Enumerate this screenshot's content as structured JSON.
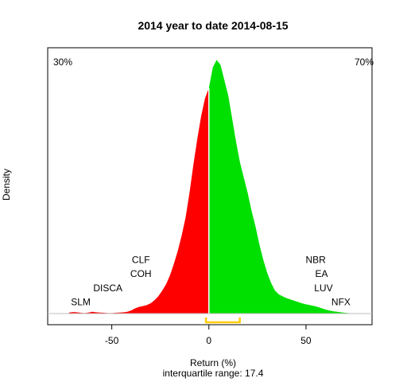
{
  "chart_data": {
    "type": "area",
    "title": "2014  year to date 2014-08-15",
    "xlabel": "Return (%)",
    "ylabel": "Density",
    "subtitle": "interquartile range: 17.4",
    "xlim": [
      -83,
      84
    ],
    "ylim": [
      0,
      1.0
    ],
    "xticks": [
      -50,
      0,
      50
    ],
    "xtick_labels": [
      "-50",
      "0",
      "50"
    ],
    "negative_share": "30%",
    "positive_share": "70%",
    "colors": {
      "negative": "#ff0000",
      "positive": "#00e000",
      "iqr_bracket": "#ffcc00",
      "baseline": "#bebebe"
    },
    "interquartile_range": {
      "low": -1.5,
      "high": 15.9
    },
    "density": {
      "x": [
        -72,
        -70,
        -68,
        -66,
        -64,
        -62,
        -60,
        -58,
        -56,
        -54,
        -52,
        -50,
        -48,
        -46,
        -44,
        -42,
        -40,
        -38,
        -36,
        -34,
        -32,
        -30,
        -28,
        -26,
        -24,
        -22,
        -20,
        -18,
        -16,
        -14,
        -12,
        -10,
        -8,
        -6,
        -4,
        -2,
        0,
        2,
        4,
        6,
        8,
        10,
        12,
        14,
        16,
        18,
        20,
        22,
        24,
        26,
        28,
        30,
        32,
        34,
        36,
        38,
        40,
        42,
        44,
        46,
        48,
        50,
        52,
        54,
        56,
        58,
        60,
        62,
        64,
        66,
        68,
        70,
        72
      ],
      "y": [
        0.004,
        0.006,
        0.005,
        0.003,
        0.002,
        0.004,
        0.007,
        0.005,
        0.004,
        0.003,
        0.002,
        0.002,
        0.003,
        0.004,
        0.005,
        0.007,
        0.012,
        0.02,
        0.026,
        0.029,
        0.033,
        0.04,
        0.052,
        0.068,
        0.09,
        0.115,
        0.15,
        0.195,
        0.245,
        0.305,
        0.375,
        0.47,
        0.58,
        0.68,
        0.77,
        0.84,
        0.88,
        0.96,
        0.99,
        0.97,
        0.91,
        0.85,
        0.76,
        0.67,
        0.59,
        0.53,
        0.47,
        0.4,
        0.34,
        0.27,
        0.21,
        0.16,
        0.12,
        0.09,
        0.075,
        0.067,
        0.06,
        0.055,
        0.05,
        0.045,
        0.04,
        0.036,
        0.033,
        0.03,
        0.026,
        0.021,
        0.016,
        0.012,
        0.009,
        0.007,
        0.005,
        0.003,
        0.002
      ]
    },
    "annotations": [
      {
        "text": "SLM",
        "x": -66,
        "y": 0.045
      },
      {
        "text": "DISCA",
        "x": -52,
        "y": 0.1
      },
      {
        "text": "COH",
        "x": -35,
        "y": 0.155
      },
      {
        "text": "CLF",
        "x": -35,
        "y": 0.21
      },
      {
        "text": "NBR",
        "x": 55,
        "y": 0.21
      },
      {
        "text": "EA",
        "x": 58,
        "y": 0.155
      },
      {
        "text": "LUV",
        "x": 59,
        "y": 0.1
      },
      {
        "text": "NFX",
        "x": 68,
        "y": 0.045
      }
    ]
  }
}
